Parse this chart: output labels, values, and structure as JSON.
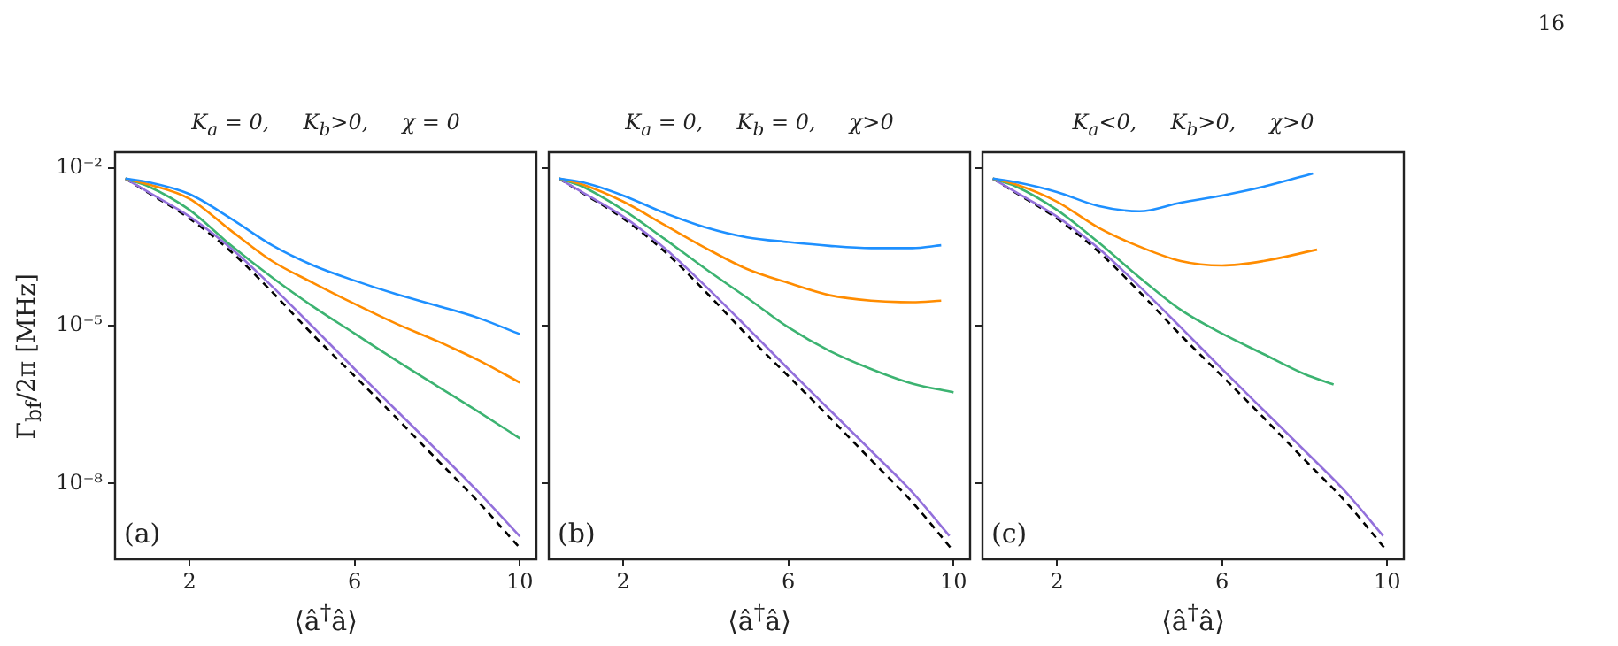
{
  "chart_data": [
    {
      "type": "line",
      "title": "K$_{a}$ = 0,     K$_{b}$>0,     χ = 0",
      "xlabel": "⟨â$^{†}$â⟩",
      "ylabel": "Γ$_{bf}$/2π [MHz]",
      "annotations": [
        "(a)",
        "16"
      ],
      "log": "y",
      "marker": "none",
      "xlim": [
        0.2,
        10.4
      ],
      "xticks": [
        2,
        6,
        10
      ],
      "ylim": [
        3.6e-10,
        0.02
      ],
      "yticks": [
        {
          "value": 0.01,
          "label": "10⁻²"
        },
        {
          "value": 1e-05,
          "label": "10⁻⁵"
        },
        {
          "value": 1e-08,
          "label": "10⁻⁸"
        }
      ],
      "series": [
        {
          "color": "#1e90ff",
          "x": [
            0.45,
            1,
            2,
            3,
            4,
            5,
            6,
            7,
            8,
            9,
            10
          ],
          "values": [
            0.0063,
            0.0054,
            0.0032,
            0.0011,
            0.00034,
            0.00014,
            7.2e-05,
            4e-05,
            2.4e-05,
            1.4e-05,
            6.9e-06
          ]
        },
        {
          "color": "#ff8c00",
          "x": [
            0.45,
            1,
            2,
            3,
            4,
            5,
            6,
            7,
            8,
            9,
            10
          ],
          "values": [
            0.0063,
            0.0049,
            0.0026,
            0.00065,
            0.00017,
            6.5e-05,
            2.6e-05,
            1.1e-05,
            5.1e-06,
            2.2e-06,
            8.3e-07
          ]
        },
        {
          "color": "#3cb371",
          "x": [
            0.45,
            1,
            2,
            3,
            4,
            5,
            6,
            7,
            8,
            9,
            10
          ],
          "values": [
            0.0063,
            0.0045,
            0.0016,
            0.00034,
            8.3e-05,
            2.3e-05,
            7.1e-06,
            2.2e-06,
            7.1e-07,
            2.3e-07,
            7.2e-08
          ]
        },
        {
          "color": "#9370db",
          "x": [
            0.45,
            1,
            2,
            3,
            4,
            5,
            6,
            7,
            8,
            9,
            10
          ],
          "values": [
            0.0063,
            0.0035,
            0.0012,
            0.0003,
            5.6e-05,
            9.3e-06,
            1.5e-06,
            2.5e-07,
            4.2e-08,
            6.8e-09,
            9.8e-10
          ]
        },
        {
          "color": "#000000",
          "line_style": "dashed",
          "x": [
            0.45,
            1,
            2,
            3,
            4,
            5,
            6,
            7,
            8,
            9,
            10
          ],
          "values": [
            0.0063,
            0.0034,
            0.0011,
            0.00026,
            4.4e-05,
            6.6e-06,
            1.1e-06,
            1.8e-07,
            2.8e-08,
            4.4e-09,
            5.9e-10
          ]
        }
      ]
    },
    {
      "type": "line",
      "title": "K$_{a}$ = 0,     K$_{b}$ = 0,     χ>0",
      "xlabel": "⟨â$^{†}$â⟩",
      "annotations": [
        "(b)"
      ],
      "log": "y",
      "marker": "none",
      "tick_labels": "x",
      "xlim": [
        0.2,
        10.4
      ],
      "xticks": [
        2,
        6,
        10
      ],
      "ylim": [
        3.6e-10,
        0.02
      ],
      "yticks": [
        {
          "value": 0.01,
          "label": null
        },
        {
          "value": 1e-05,
          "label": null
        },
        {
          "value": 1e-08,
          "label": null
        }
      ],
      "series": [
        {
          "color": "#1e90ff",
          "x": [
            0.45,
            1,
            2,
            3,
            4,
            5,
            6,
            7,
            8,
            9,
            9.7
          ],
          "values": [
            0.0063,
            0.0054,
            0.003,
            0.0014,
            0.00074,
            0.00048,
            0.00039,
            0.00033,
            0.0003,
            0.0003,
            0.00034
          ]
        },
        {
          "color": "#ff8c00",
          "x": [
            0.45,
            1,
            2,
            3,
            4,
            5,
            6,
            7,
            8,
            9,
            9.7
          ],
          "values": [
            0.0063,
            0.0049,
            0.0023,
            0.00083,
            0.0003,
            0.00012,
            6.5e-05,
            3.8e-05,
            3e-05,
            2.8e-05,
            3e-05
          ]
        },
        {
          "color": "#3cb371",
          "x": [
            0.45,
            1,
            2,
            3,
            4,
            5,
            6,
            7,
            8,
            9,
            10
          ],
          "values": [
            0.0063,
            0.0045,
            0.0016,
            0.00045,
            0.00012,
            3.4e-05,
            9.3e-06,
            3.3e-06,
            1.5e-06,
            7.9e-07,
            5.4e-07
          ]
        },
        {
          "color": "#9370db",
          "x": [
            0.45,
            1,
            2,
            3,
            4,
            5,
            6,
            7,
            8,
            9,
            9.9
          ],
          "values": [
            0.0063,
            0.0035,
            0.0012,
            0.0003,
            5.6e-05,
            9.3e-06,
            1.5e-06,
            2.5e-07,
            4.2e-08,
            6.8e-09,
            1e-09
          ]
        },
        {
          "color": "#000000",
          "line_style": "dashed",
          "x": [
            0.45,
            1,
            2,
            3,
            4,
            5,
            6,
            7,
            8,
            9,
            10
          ],
          "values": [
            0.0063,
            0.0034,
            0.0011,
            0.00026,
            4.4e-05,
            6.6e-06,
            1.1e-06,
            1.8e-07,
            2.8e-08,
            4.4e-09,
            5.1e-10
          ]
        }
      ]
    },
    {
      "type": "line",
      "title": "K$_{a}$<0,     K$_{b}$>0,     χ>0",
      "xlabel": "⟨â$^{†}$â⟩",
      "annotations": [
        "(c)"
      ],
      "log": "y",
      "marker": "none",
      "tick_labels": "x",
      "xlim": [
        0.2,
        10.4
      ],
      "xticks": [
        2,
        6,
        10
      ],
      "ylim": [
        3.6e-10,
        0.02
      ],
      "yticks": [
        {
          "value": 0.01,
          "label": null
        },
        {
          "value": 1e-05,
          "label": null
        },
        {
          "value": 1e-08,
          "label": null
        }
      ],
      "series": [
        {
          "color": "#1e90ff",
          "x": [
            0.45,
            1,
            2,
            3,
            4,
            5,
            6,
            7,
            8.2
          ],
          "values": [
            0.0063,
            0.0054,
            0.0035,
            0.0019,
            0.0015,
            0.0022,
            0.003,
            0.0044,
            0.0079
          ]
        },
        {
          "color": "#ff8c00",
          "x": [
            0.45,
            1,
            2,
            3,
            4,
            5,
            6,
            7,
            8.3
          ],
          "values": [
            0.0063,
            0.0049,
            0.0023,
            0.00074,
            0.00032,
            0.00017,
            0.00014,
            0.00017,
            0.00028
          ]
        },
        {
          "color": "#3cb371",
          "x": [
            0.45,
            1,
            2,
            3,
            4,
            5,
            6,
            7,
            8,
            8.7
          ],
          "values": [
            0.0063,
            0.0045,
            0.0016,
            0.00039,
            8.3e-05,
            2e-05,
            7.1e-06,
            2.9e-06,
            1.2e-06,
            7.6e-07
          ]
        },
        {
          "color": "#9370db",
          "x": [
            0.45,
            1,
            2,
            3,
            4,
            5,
            6,
            7,
            8,
            9,
            9.9
          ],
          "values": [
            0.0063,
            0.0035,
            0.0012,
            0.0003,
            5.6e-05,
            9.3e-06,
            1.5e-06,
            2.5e-07,
            4.2e-08,
            6.8e-09,
            1e-09
          ]
        },
        {
          "color": "#000000",
          "line_style": "dashed",
          "x": [
            0.45,
            1,
            2,
            3,
            4,
            5,
            6,
            7,
            8,
            9,
            10
          ],
          "values": [
            0.0063,
            0.0034,
            0.0011,
            0.00026,
            4.4e-05,
            6.6e-06,
            1.1e-06,
            1.8e-07,
            2.8e-08,
            4.4e-09,
            5.1e-10
          ]
        }
      ]
    }
  ]
}
